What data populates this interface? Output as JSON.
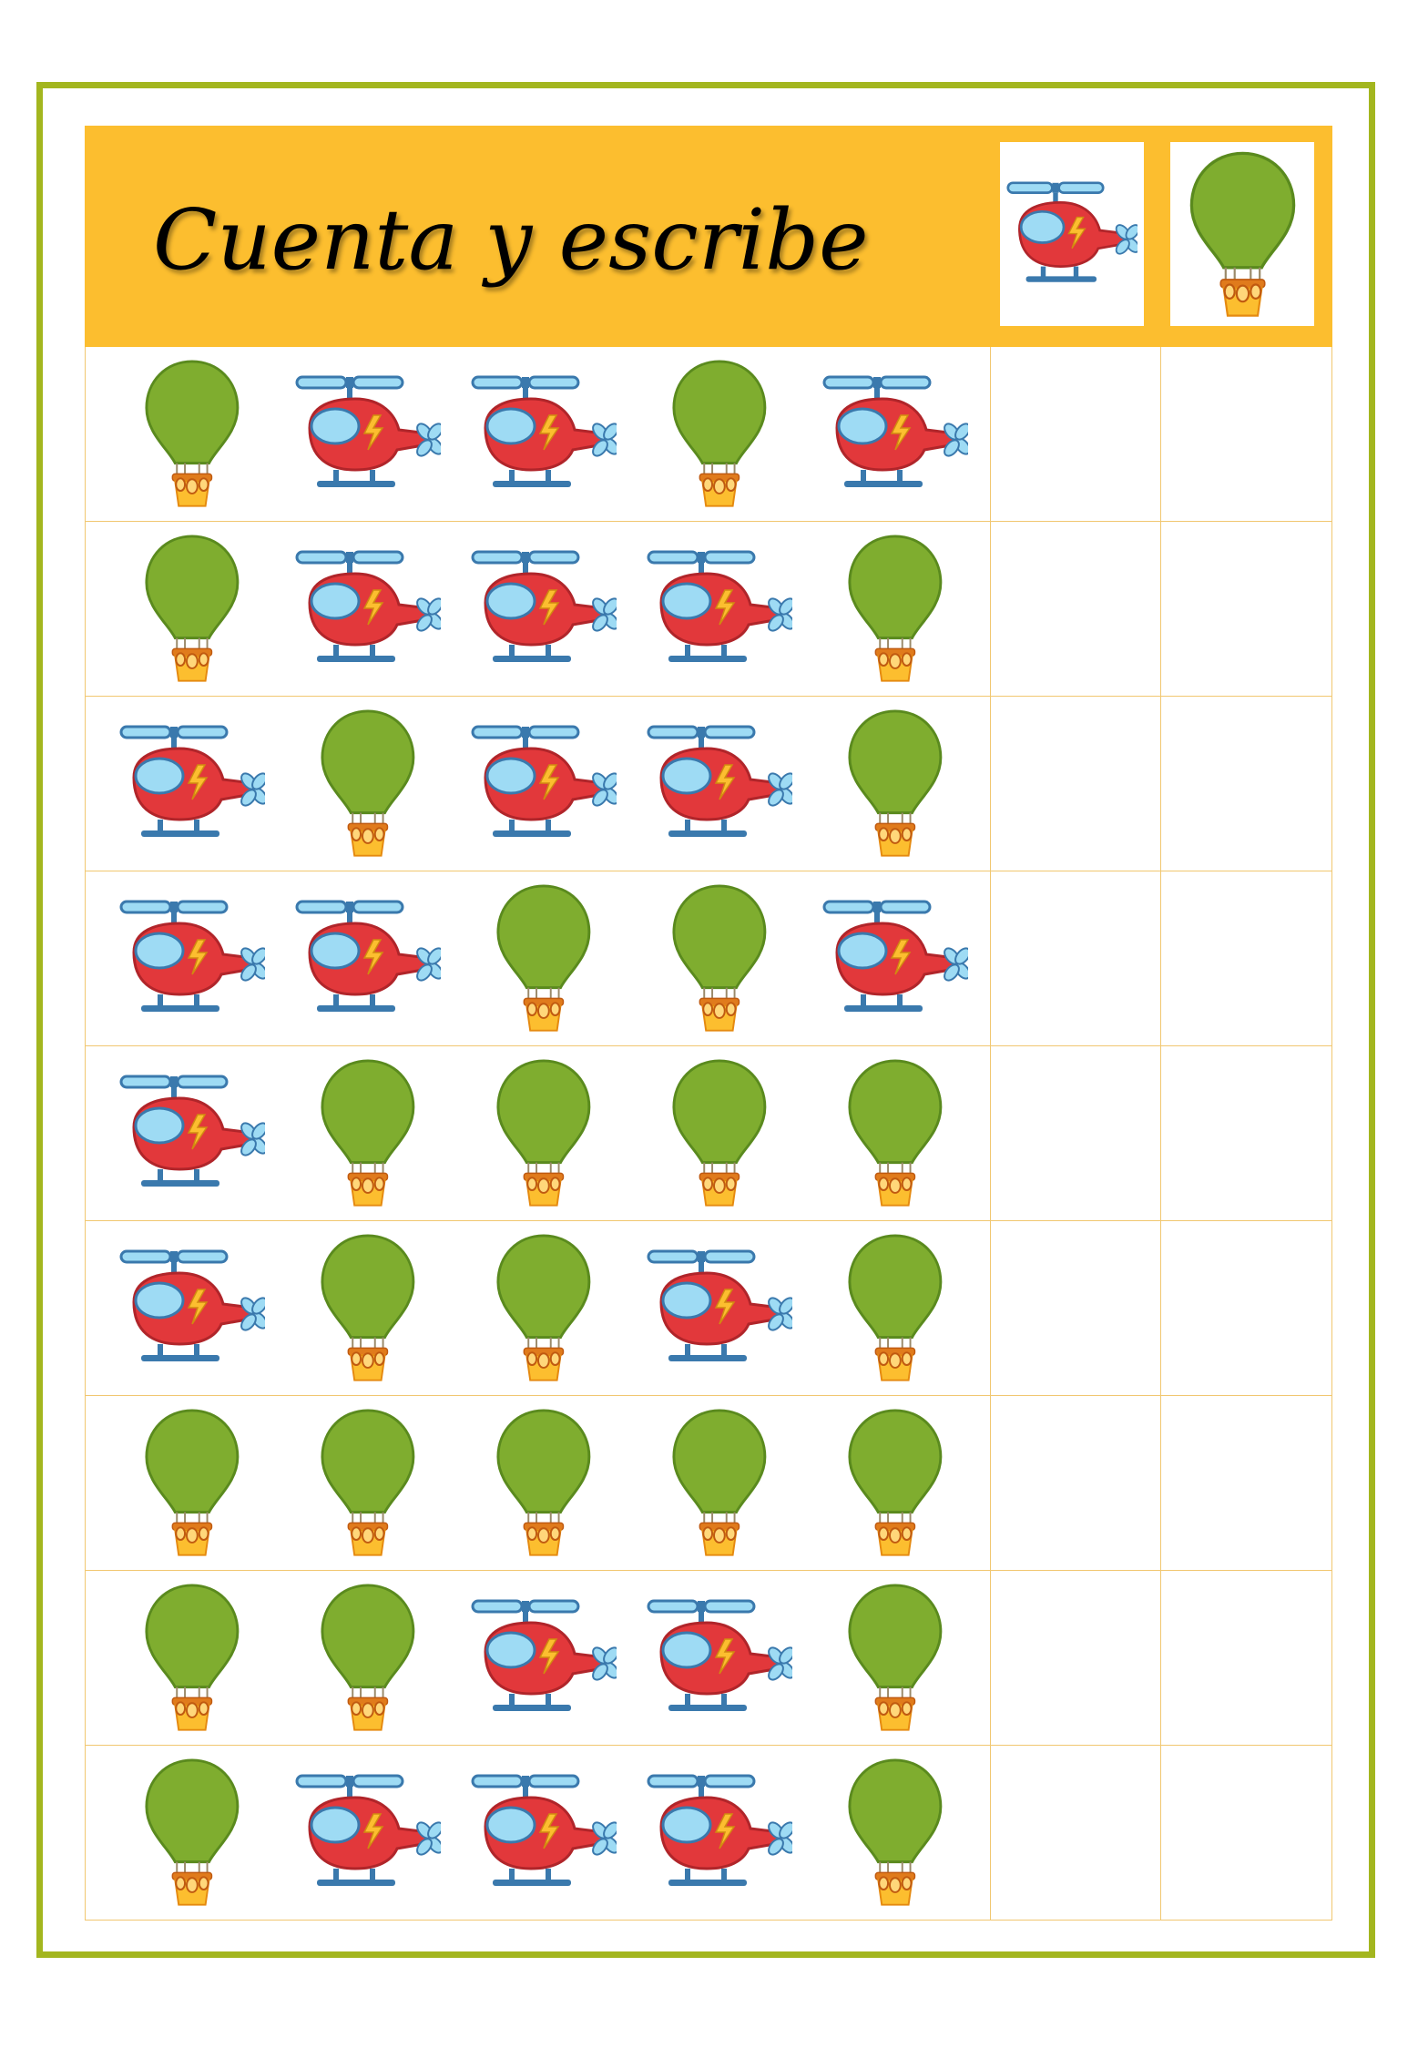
{
  "title": "Cuenta y escribe",
  "legend": [
    "helicopter-icon",
    "hot-air-balloon-icon"
  ],
  "colors": {
    "frame": "#a3b61f",
    "header": "#fcbe2f",
    "grid_lines": "#f1c770",
    "helicopter_body": "#e2383b",
    "helicopter_window": "#9edbf4",
    "helicopter_rotor": "#3a79ad",
    "balloon": "#7fad2f",
    "balloon_basket": "#f5a623"
  },
  "rows": [
    [
      "balloon",
      "helicopter",
      "helicopter",
      "balloon",
      "helicopter"
    ],
    [
      "balloon",
      "helicopter",
      "helicopter",
      "helicopter",
      "balloon"
    ],
    [
      "helicopter",
      "balloon",
      "helicopter",
      "helicopter",
      "balloon"
    ],
    [
      "helicopter",
      "helicopter",
      "balloon",
      "balloon",
      "helicopter"
    ],
    [
      "helicopter",
      "balloon",
      "balloon",
      "balloon",
      "balloon"
    ],
    [
      "helicopter",
      "balloon",
      "balloon",
      "helicopter",
      "balloon"
    ],
    [
      "balloon",
      "balloon",
      "balloon",
      "balloon",
      "balloon"
    ],
    [
      "balloon",
      "balloon",
      "helicopter",
      "helicopter",
      "balloon"
    ],
    [
      "balloon",
      "helicopter",
      "helicopter",
      "helicopter",
      "balloon"
    ]
  ]
}
